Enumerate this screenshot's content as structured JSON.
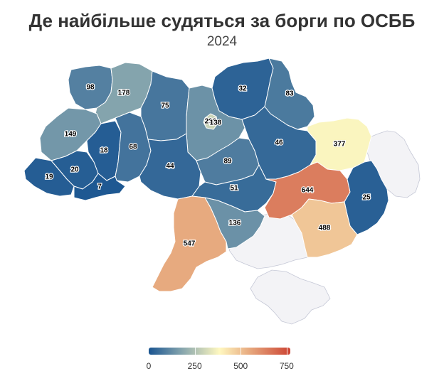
{
  "title": "Де найбільше судяться за борги по ОСББ",
  "subtitle": "2024",
  "colors": {
    "low": "#1a5591",
    "mid_low": "#7fa0ac",
    "mid": "#fff8c0",
    "mid_high": "#e6a67c",
    "high": "#cc4433",
    "no_data": "#f3f3f6"
  },
  "legend": {
    "ticks": [
      "0",
      "250",
      "500",
      "750"
    ],
    "min": 0,
    "max": 770
  },
  "regions": [
    {
      "id": "volyn",
      "value": 98
    },
    {
      "id": "rivne",
      "value": 178
    },
    {
      "id": "zhytomyr",
      "value": 75
    },
    {
      "id": "chernihiv",
      "value": 32
    },
    {
      "id": "sumy",
      "value": 83
    },
    {
      "id": "kyiv-city",
      "value": 296
    },
    {
      "id": "kyiv-oblast",
      "value": 138
    },
    {
      "id": "lviv",
      "value": 149
    },
    {
      "id": "ternopil",
      "value": 18
    },
    {
      "id": "khmelnytskyi",
      "value": 68
    },
    {
      "id": "vinnytsia",
      "value": 44
    },
    {
      "id": "zakarpattia",
      "value": 19
    },
    {
      "id": "ivano-frankivsk",
      "value": 20
    },
    {
      "id": "chernivtsi",
      "value": 7
    },
    {
      "id": "cherkasy",
      "value": 89
    },
    {
      "id": "poltava",
      "value": 46
    },
    {
      "id": "kharkiv",
      "value": 377
    },
    {
      "id": "kirovohrad",
      "value": 51
    },
    {
      "id": "dnipro",
      "value": 644
    },
    {
      "id": "luhansk",
      "value": 25
    },
    {
      "id": "odesa",
      "value": 547
    },
    {
      "id": "mykolaiv",
      "value": 136
    },
    {
      "id": "zaporizhzhia",
      "value": 488
    }
  ],
  "no_data_regions": [
    "donetsk-east",
    "kherson",
    "crimea"
  ]
}
